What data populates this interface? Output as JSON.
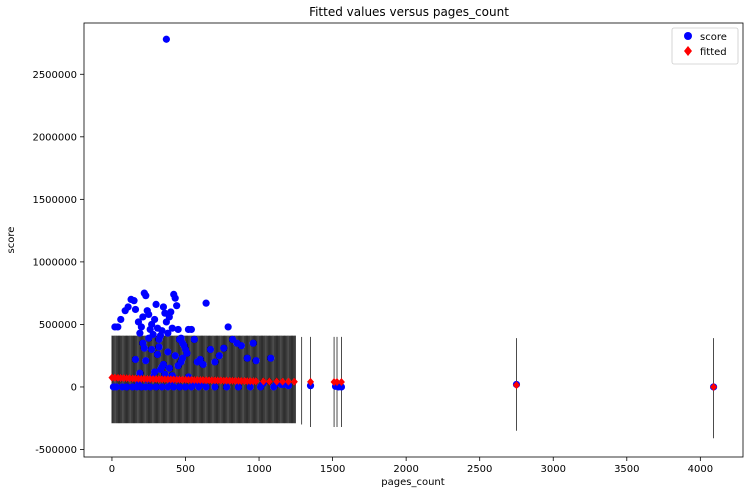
{
  "chart_data": {
    "type": "scatter",
    "title": "Fitted values versus pages_count",
    "xlabel": "pages_count",
    "ylabel": "score",
    "xlim": [
      -190,
      4290
    ],
    "ylim": [
      -560000,
      2910000
    ],
    "xticks": [
      0,
      500,
      1000,
      1500,
      2000,
      2500,
      3000,
      3500,
      4000
    ],
    "xtick_labels": [
      "0",
      "500",
      "1000",
      "1500",
      "2000",
      "2500",
      "3000",
      "3500",
      "4000"
    ],
    "yticks": [
      -500000,
      0,
      500000,
      1000000,
      1500000,
      2000000,
      2500000
    ],
    "ytick_labels": [
      "-500000",
      "0",
      "500000",
      "1000000",
      "1500000",
      "2000000",
      "2500000"
    ],
    "grid": false,
    "legend_position": "top-right",
    "series": [
      {
        "name": "score",
        "color": "#0000ff",
        "marker": "circle",
        "x": [
          370,
          20,
          40,
          60,
          90,
          110,
          130,
          150,
          160,
          180,
          190,
          200,
          210,
          220,
          230,
          240,
          250,
          260,
          270,
          280,
          290,
          300,
          310,
          320,
          330,
          340,
          350,
          360,
          370,
          380,
          390,
          400,
          410,
          420,
          430,
          440,
          450,
          460,
          470,
          480,
          490,
          500,
          510,
          520,
          540,
          560,
          580,
          600,
          620,
          640,
          670,
          700,
          730,
          760,
          790,
          820,
          850,
          880,
          920,
          960,
          980,
          1030,
          1080,
          1120,
          1150,
          1165,
          1200,
          1350,
          1520,
          1540,
          1560,
          2750,
          4090,
          10,
          30,
          70,
          100,
          140,
          170,
          200,
          230,
          260,
          300,
          340,
          380,
          420,
          460,
          500,
          540,
          590,
          640,
          700,
          780,
          860,
          940,
          1010,
          1100,
          190,
          230,
          270,
          310,
          350,
          390,
          430,
          470,
          290,
          330,
          410,
          450,
          240,
          180,
          280,
          360,
          400,
          440,
          520,
          560,
          600,
          320,
          380,
          480,
          210,
          250,
          340,
          160,
          220
        ],
        "y": [
          2780000,
          480000,
          480000,
          540000,
          610000,
          640000,
          700000,
          690000,
          620000,
          520000,
          430000,
          480000,
          560000,
          750000,
          730000,
          610000,
          580000,
          460000,
          500000,
          420000,
          540000,
          660000,
          470000,
          380000,
          410000,
          450000,
          640000,
          590000,
          520000,
          430000,
          560000,
          600000,
          470000,
          740000,
          710000,
          650000,
          460000,
          380000,
          390000,
          350000,
          330000,
          300000,
          270000,
          460000,
          460000,
          380000,
          200000,
          220000,
          180000,
          670000,
          300000,
          200000,
          250000,
          310000,
          480000,
          380000,
          350000,
          330000,
          230000,
          350000,
          210000,
          30000,
          230000,
          30000,
          20000,
          20000,
          10000,
          10000,
          5000,
          0,
          0,
          20000,
          0,
          0,
          0,
          0,
          0,
          0,
          0,
          0,
          0,
          0,
          0,
          0,
          0,
          0,
          0,
          0,
          0,
          0,
          0,
          0,
          0,
          0,
          0,
          0,
          0,
          110000,
          210000,
          300000,
          260000,
          180000,
          150000,
          250000,
          200000,
          120000,
          140000,
          90000,
          170000,
          60000,
          40000,
          80000,
          100000,
          50000,
          60000,
          80000,
          30000,
          20000,
          320000,
          280000,
          230000,
          350000,
          390000,
          160000,
          220000,
          310000
        ]
      },
      {
        "name": "fitted",
        "color": "#ff0000",
        "marker": "diamond",
        "x": [
          0,
          20,
          40,
          60,
          80,
          100,
          120,
          140,
          160,
          180,
          200,
          220,
          240,
          260,
          280,
          300,
          320,
          340,
          360,
          380,
          400,
          420,
          440,
          460,
          480,
          500,
          520,
          540,
          560,
          580,
          600,
          620,
          640,
          660,
          680,
          700,
          720,
          740,
          760,
          780,
          800,
          820,
          840,
          860,
          880,
          900,
          920,
          940,
          960,
          980,
          1030,
          1070,
          1120,
          1160,
          1200,
          1240,
          1350,
          1510,
          1530,
          1560,
          2750,
          4090
        ],
        "y": [
          75000,
          74000,
          73000,
          72000,
          71000,
          70000,
          69000,
          68000,
          67000,
          66000,
          65000,
          64500,
          64000,
          63500,
          63000,
          62500,
          62000,
          61500,
          61000,
          60500,
          60000,
          59500,
          59000,
          58500,
          58000,
          57500,
          57000,
          56500,
          56000,
          55500,
          55000,
          54500,
          54000,
          53500,
          53000,
          52500,
          52000,
          51500,
          51000,
          50500,
          50000,
          49500,
          49000,
          48500,
          48000,
          47500,
          47000,
          46500,
          46000,
          45500,
          44500,
          44000,
          43500,
          43000,
          42500,
          42000,
          41000,
          40000,
          39800,
          39500,
          15000,
          0
        ]
      }
    ],
    "error_bars": {
      "color": "#000000",
      "dense_range": [
        0,
        1250
      ],
      "dense_spacing": 6,
      "dense_lower": -290000,
      "dense_upper": 410000,
      "sparse": [
        {
          "x": 1290,
          "lower": -300000,
          "upper": 400000
        },
        {
          "x": 1350,
          "lower": -320000,
          "upper": 400000
        },
        {
          "x": 1510,
          "lower": -320000,
          "upper": 400000
        },
        {
          "x": 1530,
          "lower": -320000,
          "upper": 400000
        },
        {
          "x": 1560,
          "lower": -320000,
          "upper": 400000
        },
        {
          "x": 2750,
          "lower": -350000,
          "upper": 390000
        },
        {
          "x": 4090,
          "lower": -410000,
          "upper": 390000
        }
      ]
    }
  }
}
